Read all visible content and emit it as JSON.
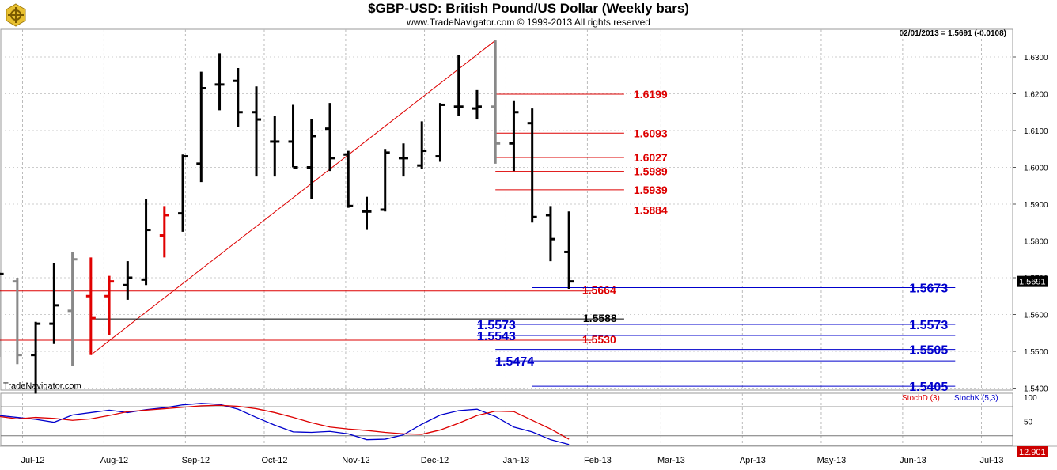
{
  "title": "$GBP-USD:  British Pound/US Dollar  (Weekly bars)",
  "copyright": "www.TradeNavigator.com © 1999-2013 All rights reserved",
  "last_bar_info": "02/01/2013 = 1.5691 (-0.0108)",
  "watermark": "TradeNavigator.com",
  "price_badge": "1.5691",
  "stoch_badge": "12.901",
  "colors": {
    "up": "#000000",
    "down_red": "#e00000",
    "neutral": "#888888",
    "fib_red": "#dd0000",
    "fib_blue": "#0000cc",
    "stochD": "#dd0000",
    "stochK": "#0000cc"
  },
  "chart_data": {
    "type": "ohlc",
    "ylim": [
      1.538,
      1.6345
    ],
    "y_ticks": [
      "1.6300",
      "1.6200",
      "1.6100",
      "1.6000",
      "1.5900",
      "1.5800",
      "1.5700",
      "1.5600",
      "1.5500",
      "1.5400"
    ],
    "x_ticks": [
      "Jul-12",
      "Aug-12",
      "Sep-12",
      "Oct-12",
      "Nov-12",
      "Dec-12",
      "Jan-13",
      "Feb-13",
      "Mar-13",
      "Apr-13",
      "May-13",
      "Jun-13",
      "Jul-13"
    ],
    "bars": [
      {
        "date": "2012-06-22",
        "o": 1.5575,
        "h": 1.5715,
        "l": 1.5485,
        "c": 1.571,
        "color": "up"
      },
      {
        "date": "2012-06-29",
        "o": 1.569,
        "h": 1.57,
        "l": 1.5465,
        "c": 1.549,
        "color": "neutral"
      },
      {
        "date": "2012-07-06",
        "o": 1.549,
        "h": 1.558,
        "l": 1.5385,
        "c": 1.5575,
        "color": "up"
      },
      {
        "date": "2012-07-13",
        "o": 1.5575,
        "h": 1.574,
        "l": 1.552,
        "c": 1.5625,
        "color": "up"
      },
      {
        "date": "2012-07-20",
        "o": 1.561,
        "h": 1.577,
        "l": 1.546,
        "c": 1.575,
        "color": "neutral"
      },
      {
        "date": "2012-07-27",
        "o": 1.565,
        "h": 1.5755,
        "l": 1.549,
        "c": 1.559,
        "color": "down_red"
      },
      {
        "date": "2012-08-03",
        "o": 1.565,
        "h": 1.5705,
        "l": 1.5545,
        "c": 1.569,
        "color": "down_red"
      },
      {
        "date": "2012-08-10",
        "o": 1.568,
        "h": 1.5745,
        "l": 1.564,
        "c": 1.57,
        "color": "up"
      },
      {
        "date": "2012-08-17",
        "o": 1.5695,
        "h": 1.5915,
        "l": 1.568,
        "c": 1.583,
        "color": "up"
      },
      {
        "date": "2012-08-24",
        "o": 1.5815,
        "h": 1.5895,
        "l": 1.5755,
        "c": 1.587,
        "color": "down_red"
      },
      {
        "date": "2012-08-31",
        "o": 1.5875,
        "h": 1.6035,
        "l": 1.5825,
        "c": 1.603,
        "color": "up"
      },
      {
        "date": "2012-09-07",
        "o": 1.601,
        "h": 1.626,
        "l": 1.596,
        "c": 1.6215,
        "color": "up"
      },
      {
        "date": "2012-09-14",
        "o": 1.6225,
        "h": 1.631,
        "l": 1.6155,
        "c": 1.6225,
        "color": "up"
      },
      {
        "date": "2012-09-21",
        "o": 1.6235,
        "h": 1.627,
        "l": 1.611,
        "c": 1.615,
        "color": "up"
      },
      {
        "date": "2012-09-28",
        "o": 1.615,
        "h": 1.622,
        "l": 1.5975,
        "c": 1.613,
        "color": "up"
      },
      {
        "date": "2012-10-05",
        "o": 1.607,
        "h": 1.614,
        "l": 1.5975,
        "c": 1.607,
        "color": "up"
      },
      {
        "date": "2012-10-12",
        "o": 1.607,
        "h": 1.617,
        "l": 1.6,
        "c": 1.6,
        "color": "up"
      },
      {
        "date": "2012-10-19",
        "o": 1.6,
        "h": 1.613,
        "l": 1.5915,
        "c": 1.6085,
        "color": "up"
      },
      {
        "date": "2012-10-26",
        "o": 1.6105,
        "h": 1.6175,
        "l": 1.599,
        "c": 1.6025,
        "color": "up"
      },
      {
        "date": "2012-11-02",
        "o": 1.6035,
        "h": 1.6045,
        "l": 1.589,
        "c": 1.5895,
        "color": "up"
      },
      {
        "date": "2012-11-09",
        "o": 1.588,
        "h": 1.592,
        "l": 1.583,
        "c": 1.588,
        "color": "up"
      },
      {
        "date": "2012-11-16",
        "o": 1.5885,
        "h": 1.605,
        "l": 1.588,
        "c": 1.604,
        "color": "up"
      },
      {
        "date": "2012-11-23",
        "o": 1.6025,
        "h": 1.6065,
        "l": 1.5975,
        "c": 1.6025,
        "color": "up"
      },
      {
        "date": "2012-11-30",
        "o": 1.6005,
        "h": 1.6125,
        "l": 1.5995,
        "c": 1.6045,
        "color": "up"
      },
      {
        "date": "2012-12-07",
        "o": 1.603,
        "h": 1.6175,
        "l": 1.6015,
        "c": 1.617,
        "color": "up"
      },
      {
        "date": "2012-12-14",
        "o": 1.6165,
        "h": 1.6305,
        "l": 1.614,
        "c": 1.6165,
        "color": "up"
      },
      {
        "date": "2012-12-21",
        "o": 1.616,
        "h": 1.621,
        "l": 1.613,
        "c": 1.6165,
        "color": "up"
      },
      {
        "date": "2012-12-28",
        "o": 1.6165,
        "h": 1.6345,
        "l": 1.601,
        "c": 1.6065,
        "color": "neutral"
      },
      {
        "date": "2013-01-04",
        "o": 1.6065,
        "h": 1.618,
        "l": 1.599,
        "c": 1.615,
        "color": "up"
      },
      {
        "date": "2013-01-11",
        "o": 1.612,
        "h": 1.616,
        "l": 1.585,
        "c": 1.5865,
        "color": "up"
      },
      {
        "date": "2013-01-18",
        "o": 1.587,
        "h": 1.5895,
        "l": 1.5745,
        "c": 1.5805,
        "color": "up"
      },
      {
        "date": "2013-01-25",
        "o": 1.577,
        "h": 1.588,
        "l": 1.567,
        "c": 1.569,
        "color": "up"
      }
    ],
    "lines": [
      {
        "type": "trend",
        "color": "fib_red",
        "from": [
          "2012-07-27",
          1.549
        ],
        "to": [
          "2012-12-28",
          1.6345
        ]
      },
      {
        "type": "hline",
        "color": "fib_red",
        "price": 1.5664,
        "from": "2012-06-15",
        "to": "2013-02-03",
        "label": "1.5664"
      },
      {
        "type": "hline",
        "color": "fib_red",
        "price": 1.553,
        "from": "2012-06-15",
        "to": "2013-02-03",
        "label": "1.5530"
      },
      {
        "type": "hline",
        "color": "up",
        "price": 1.5588,
        "from": "2012-07-27",
        "to": "2013-02-15",
        "label": "1.5588"
      },
      {
        "type": "hline",
        "color": "fib_red",
        "price": 1.6199,
        "from": "2012-12-28",
        "to": "2013-02-15",
        "label": "1.6199"
      },
      {
        "type": "hline",
        "color": "fib_red",
        "price": 1.6093,
        "from": "2012-12-28",
        "to": "2013-02-15",
        "label": "1.6093"
      },
      {
        "type": "hline",
        "color": "fib_red",
        "price": 1.6027,
        "from": "2012-12-28",
        "to": "2013-02-15",
        "label": "1.6027"
      },
      {
        "type": "hline",
        "color": "fib_red",
        "price": 1.5989,
        "from": "2012-12-28",
        "to": "2013-02-15",
        "label": "1.5989"
      },
      {
        "type": "hline",
        "color": "fib_red",
        "price": 1.5939,
        "from": "2012-12-28",
        "to": "2013-02-15",
        "label": "1.5939"
      },
      {
        "type": "hline",
        "color": "fib_red",
        "price": 1.5884,
        "from": "2012-12-28",
        "to": "2013-02-15",
        "label": "1.5884"
      },
      {
        "type": "hline",
        "color": "fib_blue",
        "price": 1.5673,
        "from": "2013-01-11",
        "to": "2013-06-21",
        "label": "1.5673"
      },
      {
        "type": "hline",
        "color": "fib_blue",
        "price": 1.5573,
        "from": "2012-12-21",
        "to": "2013-06-21",
        "label": "1.5573",
        "label_left": "1.5573"
      },
      {
        "type": "hline",
        "color": "fib_blue",
        "price": 1.5543,
        "from": "2012-12-21",
        "to": "2013-06-21",
        "label_left": "1.5543"
      },
      {
        "type": "hline",
        "color": "fib_blue",
        "price": 1.5505,
        "from": "2012-12-28",
        "to": "2013-06-21",
        "label": "1.5505"
      },
      {
        "type": "hline",
        "color": "fib_blue",
        "price": 1.5474,
        "from": "2012-12-28",
        "to": "2013-06-21",
        "label_left": "1.5474"
      },
      {
        "type": "hline",
        "color": "fib_blue",
        "price": 1.5405,
        "from": "2013-01-11",
        "to": "2013-06-21",
        "label": "1.5405"
      }
    ],
    "stochastic": {
      "legend_d": "StochD (3)",
      "legend_k": "StochK (5,3)",
      "y_ticks": [
        "100",
        "50"
      ],
      "levels": [
        80,
        20
      ],
      "ylim": [
        0,
        108
      ],
      "d": [
        60,
        55,
        58,
        56,
        52,
        55,
        62,
        70,
        73,
        76,
        79,
        82,
        83,
        81,
        76,
        68,
        58,
        47,
        38,
        34,
        31,
        27,
        24,
        23,
        32,
        46,
        62,
        71,
        70,
        52,
        34,
        13
      ],
      "k": [
        62,
        58,
        54,
        48,
        63,
        68,
        73,
        68,
        74,
        78,
        84,
        87,
        85,
        75,
        58,
        42,
        28,
        27,
        29,
        24,
        12,
        13,
        22,
        44,
        63,
        72,
        75,
        60,
        38,
        28,
        12,
        2
      ]
    }
  }
}
